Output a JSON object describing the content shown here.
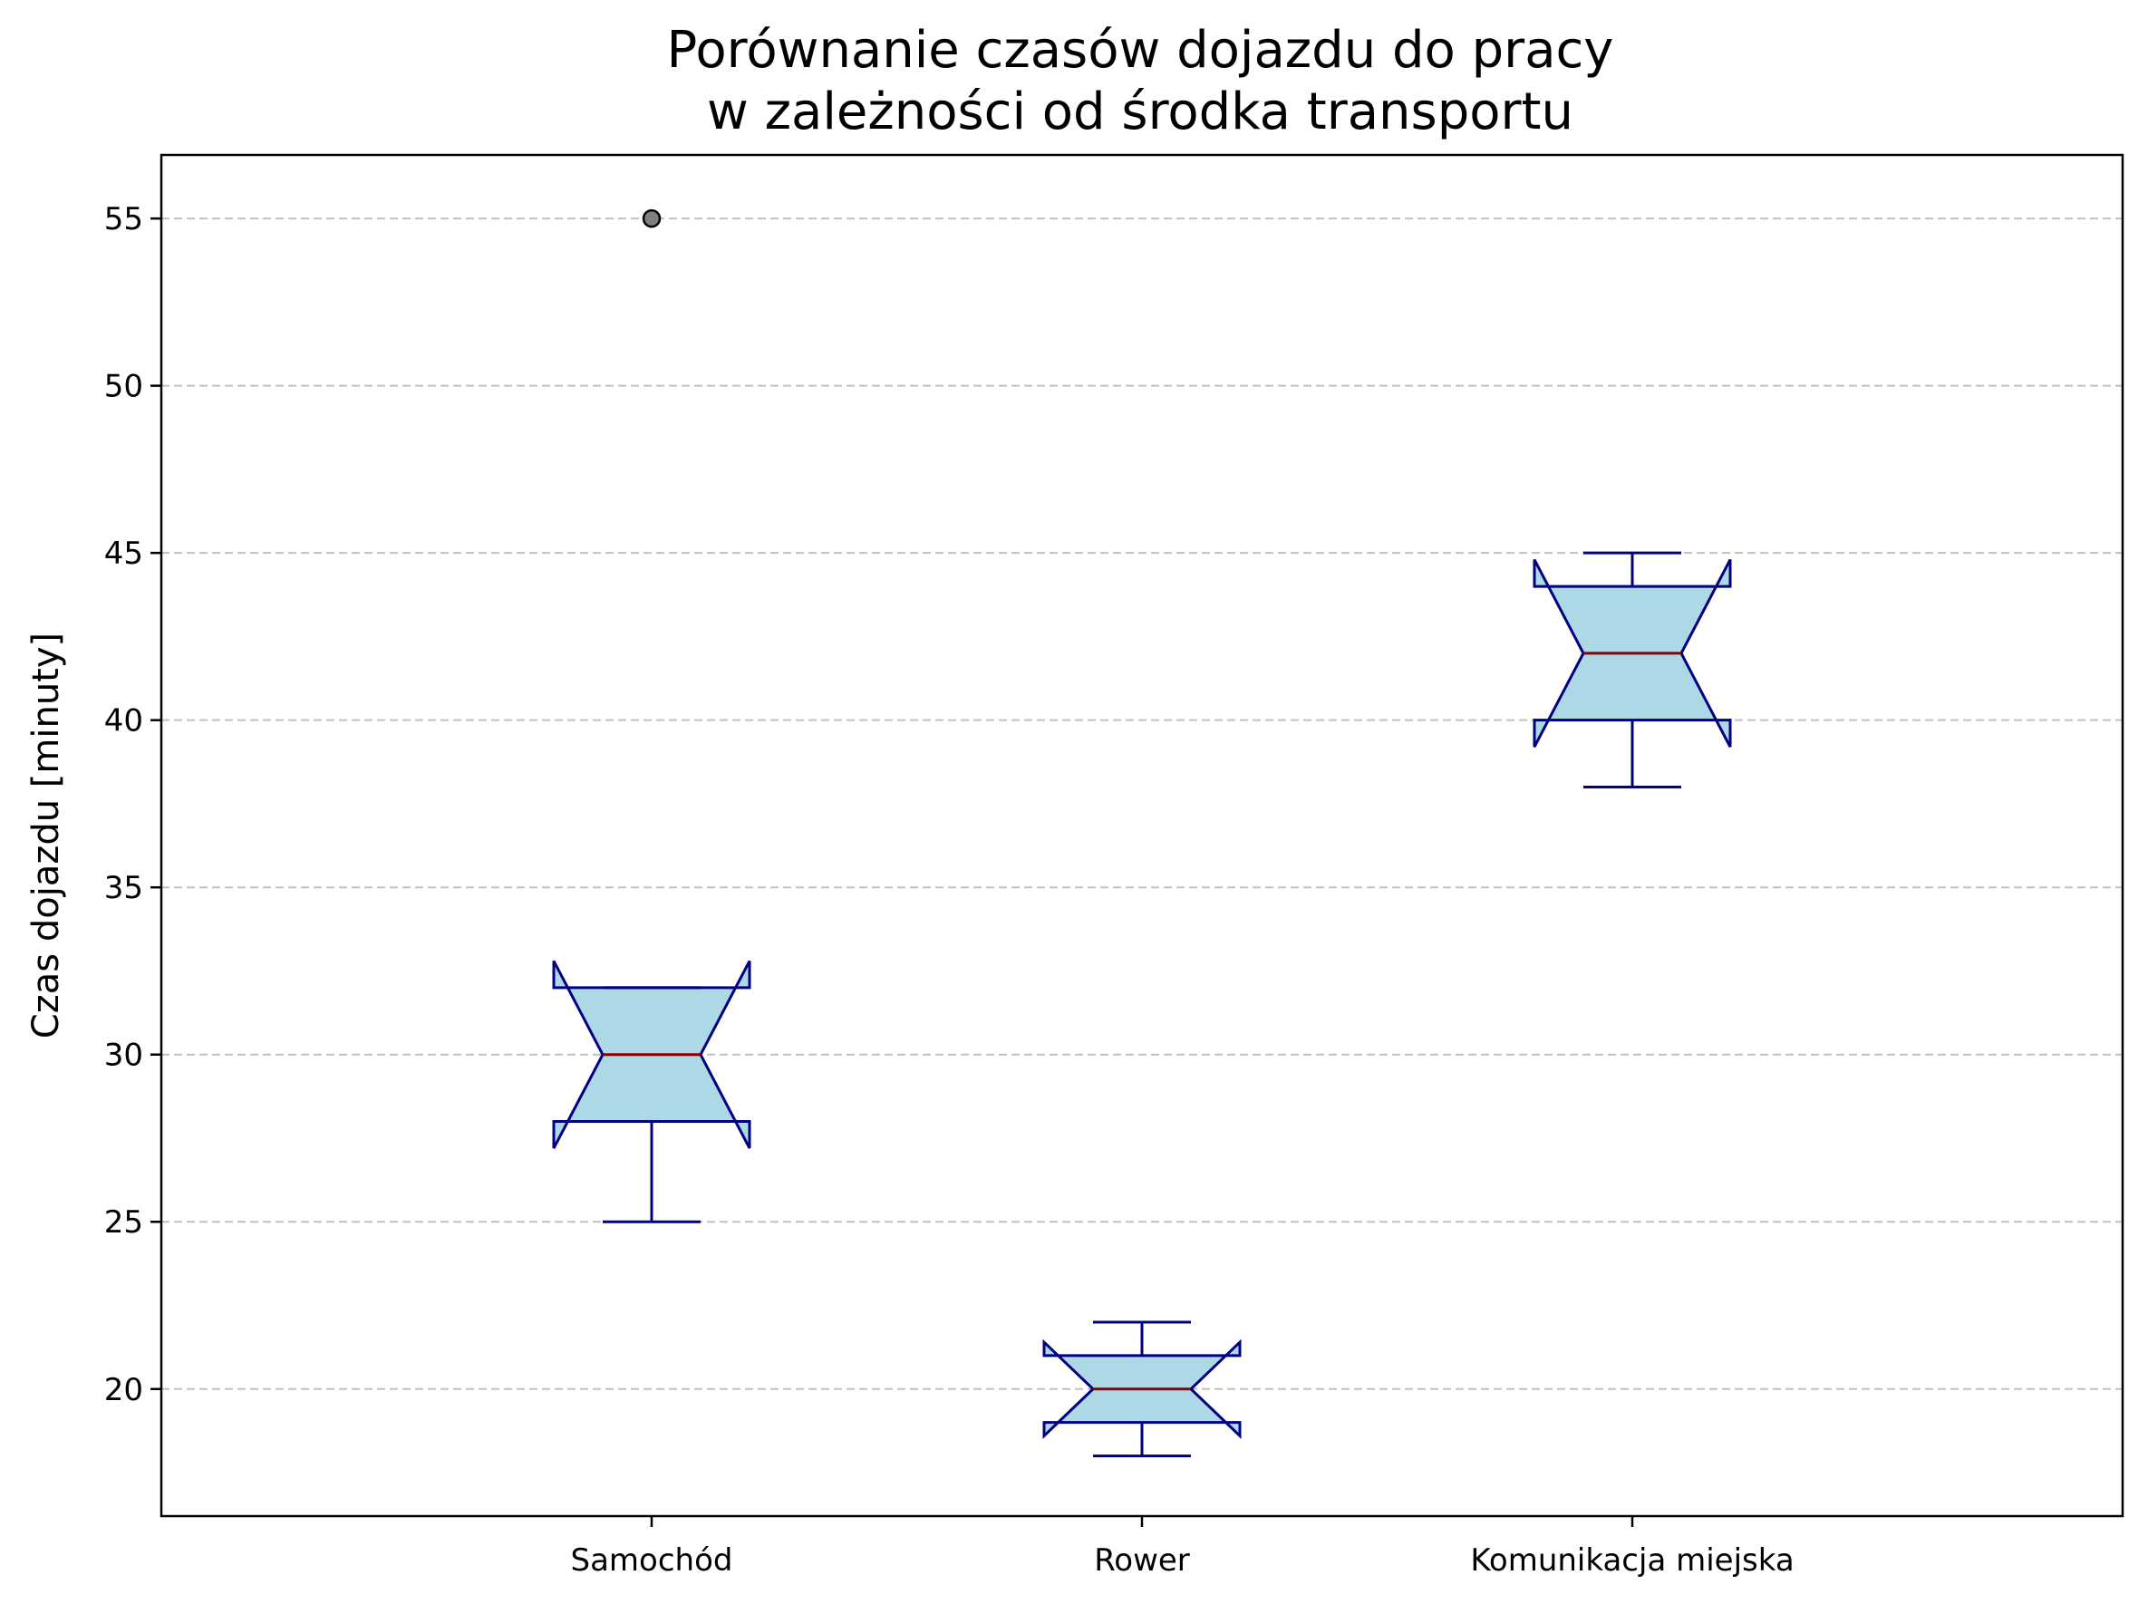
{
  "chart_data": {
    "type": "boxplot",
    "title_lines": [
      "Porównanie czasów dojazdu do pracy",
      "w zależności od środka transportu"
    ],
    "xlabel": "",
    "ylabel": "Czas dojazdu [minuty]",
    "ylim": [
      16.2,
      56.9
    ],
    "yticks": [
      20,
      25,
      30,
      35,
      40,
      45,
      50,
      55
    ],
    "grid": {
      "y": true,
      "x": false,
      "style": "dashed"
    },
    "notched": true,
    "categories": [
      "Samochód",
      "Rower",
      "Komunikacja miejska"
    ],
    "boxes": [
      {
        "label": "Samochód",
        "whisker_low": 25,
        "q1": 28,
        "median": 30,
        "q3": 32,
        "whisker_high": 32,
        "notch_low": 27.2,
        "notch_high": 32.8,
        "outliers": [
          55
        ]
      },
      {
        "label": "Rower",
        "whisker_low": 18,
        "q1": 19,
        "median": 20,
        "q3": 21,
        "whisker_high": 22,
        "notch_low": 18.6,
        "notch_high": 21.4,
        "outliers": []
      },
      {
        "label": "Komunikacja miejska",
        "whisker_low": 38,
        "q1": 40,
        "median": 42,
        "q3": 44,
        "whisker_high": 45,
        "notch_low": 39.2,
        "notch_high": 44.8,
        "outliers": []
      }
    ],
    "colors": {
      "box_fill": "#add8e6",
      "box_edge": "#000080",
      "median": "#8b0000",
      "outlier_fill": "#808080",
      "grid": "#c0c0c0"
    }
  }
}
